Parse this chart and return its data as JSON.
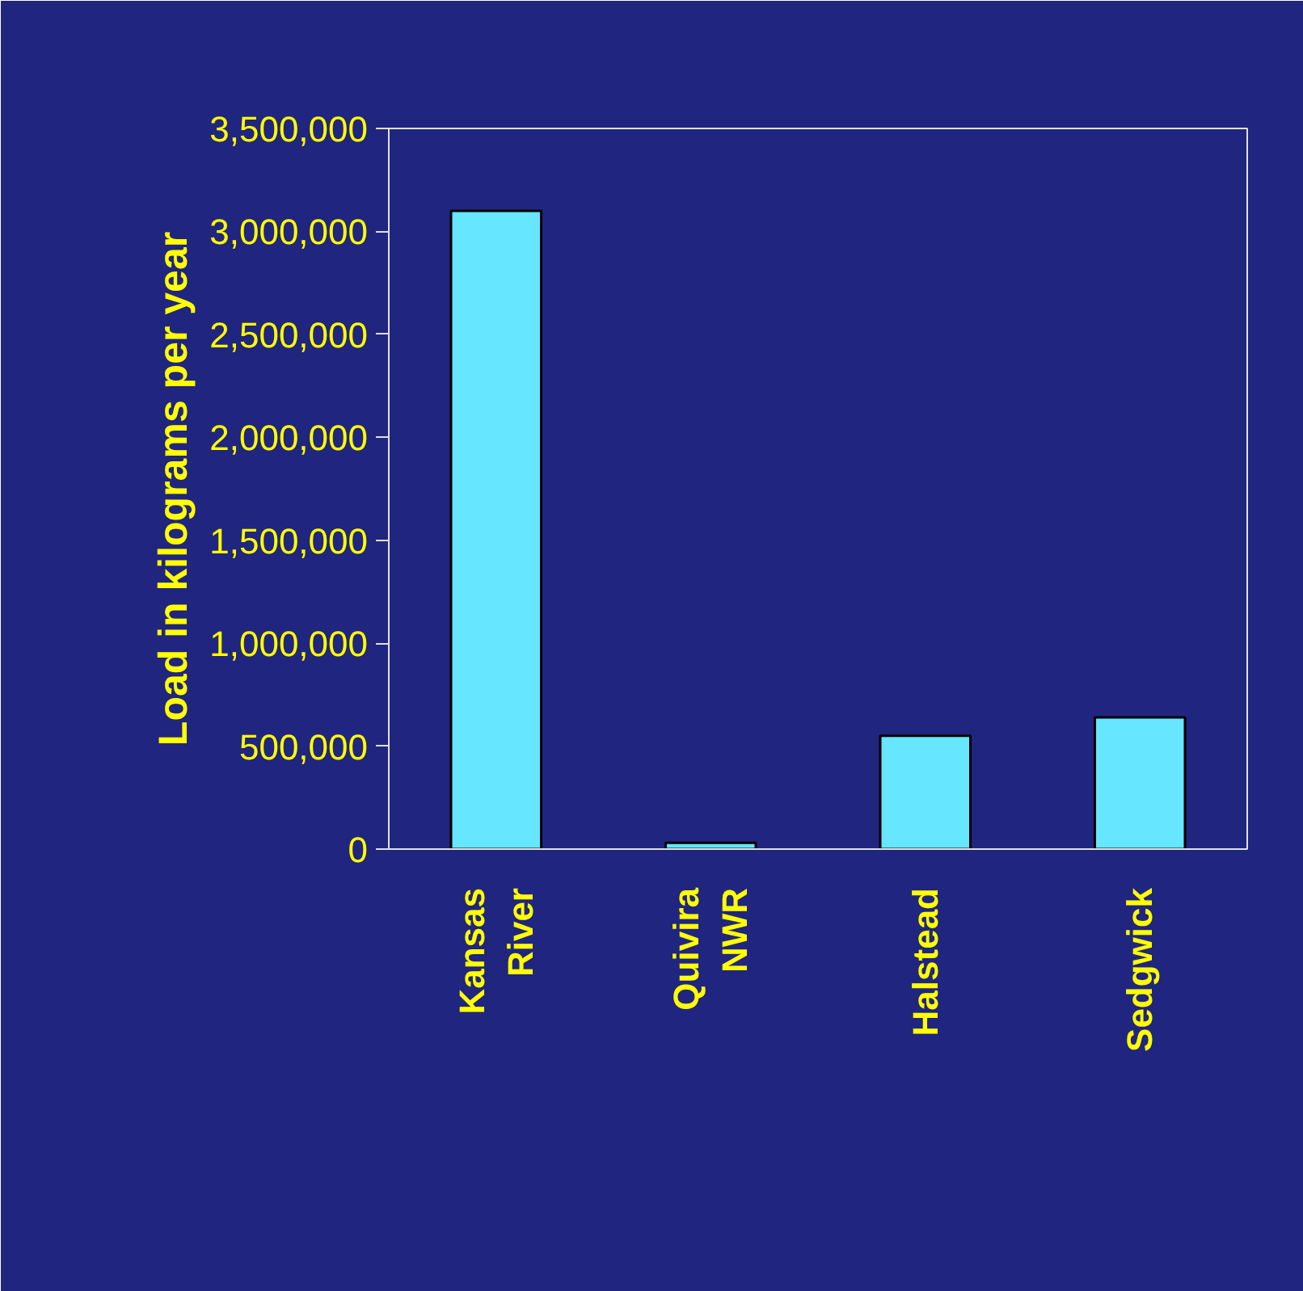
{
  "chart_data": {
    "type": "bar",
    "ylabel": "Load in kilograms per year",
    "categories": [
      "Kansas River",
      "Quivira NWR",
      "Halstead",
      "Sedgwick"
    ],
    "values": [
      3100000,
      30000,
      550000,
      640000
    ],
    "color": "#66e6ff",
    "ylim": [
      0,
      3500000
    ],
    "yticks": [
      {
        "value": 0,
        "label": "0"
      },
      {
        "value": 500000,
        "label": "500,000"
      },
      {
        "value": 1000000,
        "label": "1,000,000"
      },
      {
        "value": 1500000,
        "label": "1,500,000"
      },
      {
        "value": 2000000,
        "label": "2,000,000"
      },
      {
        "value": 2500000,
        "label": "2,500,000"
      },
      {
        "value": 3000000,
        "label": "3,000,000"
      },
      {
        "value": 3500000,
        "label": "3,500,000"
      }
    ],
    "grid": false
  }
}
